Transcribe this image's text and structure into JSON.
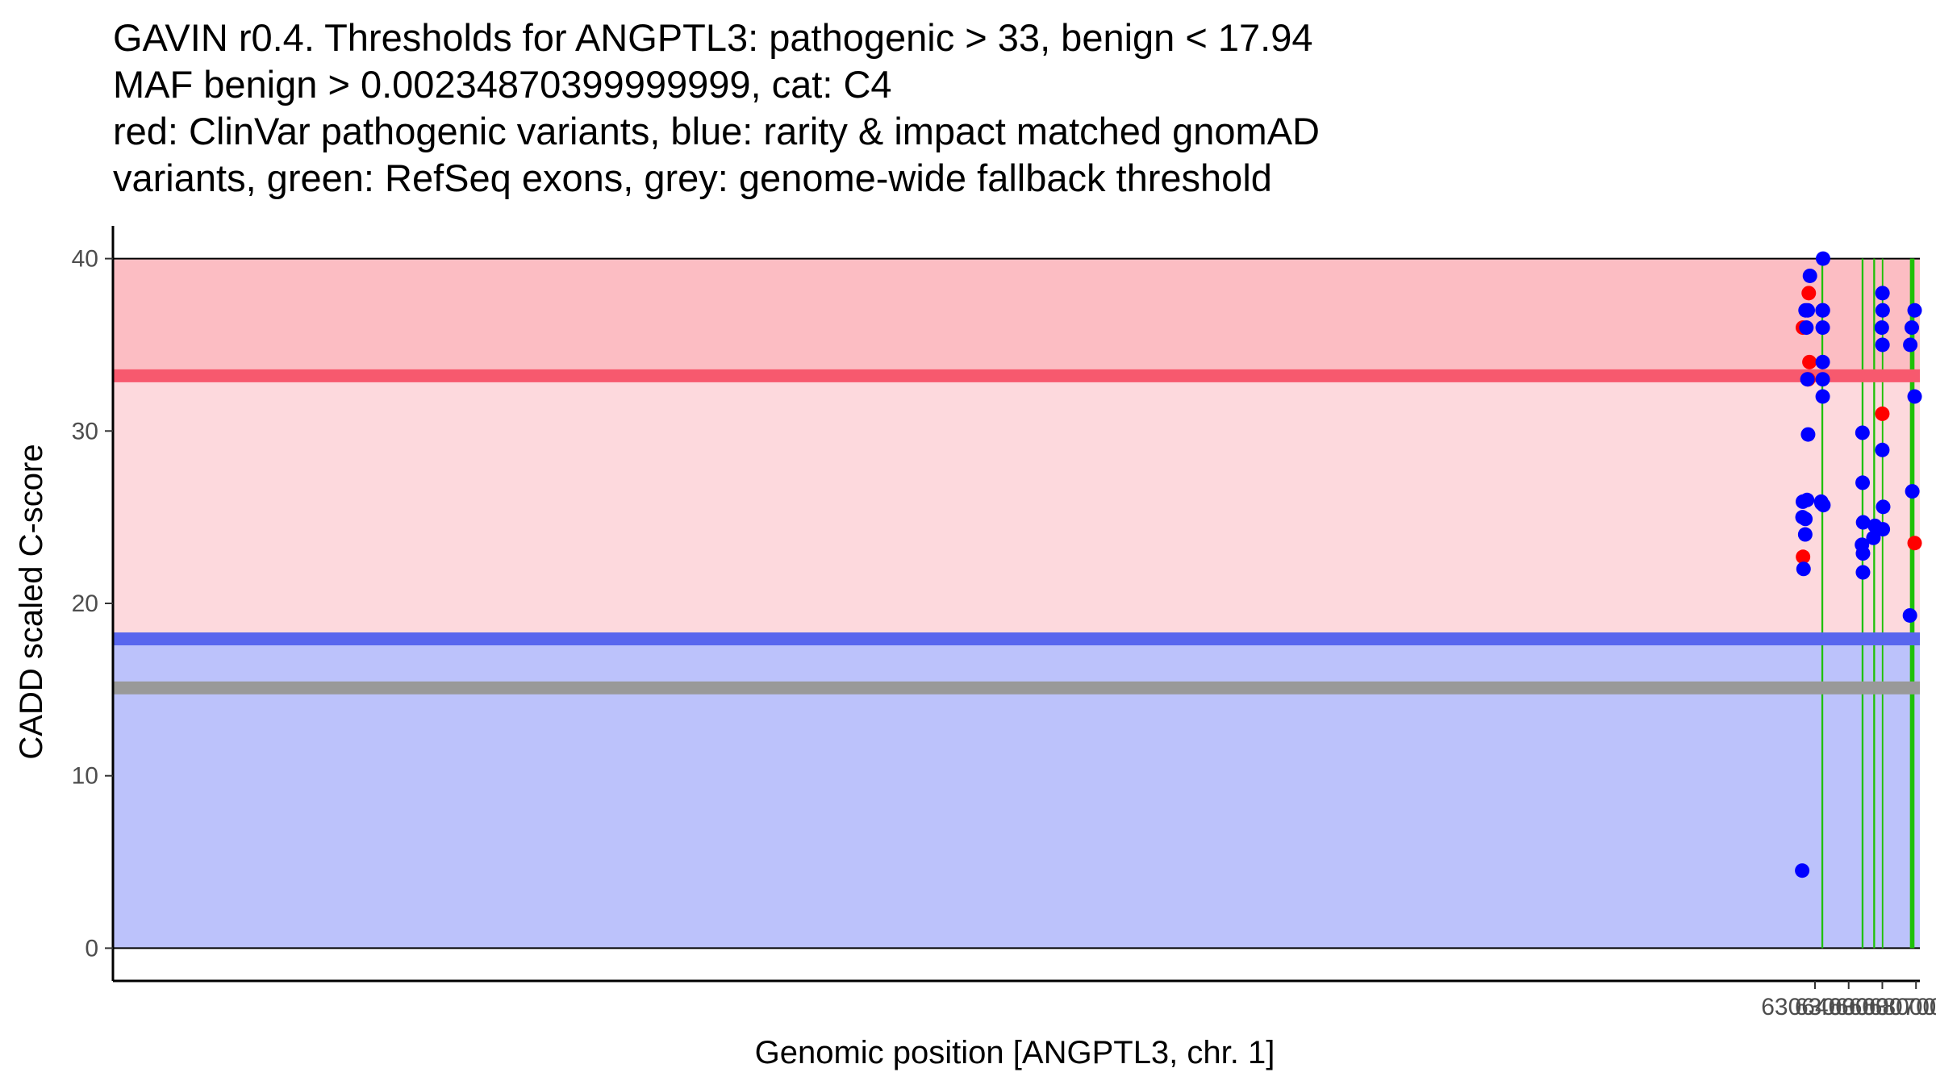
{
  "title_lines": [
    "GAVIN r0.4. Thresholds for ANGPTL3: pathogenic > 33, benign < 17.94",
    "MAF benign > 0.00234870399999999, cat: C4",
    "red: ClinVar pathogenic variants, blue: rarity & impact matched gnomAD",
    "variants, green: RefSeq exons, grey: genome-wide fallback threshold"
  ],
  "colors": {
    "pathogenic_zone": "#FCBDC3",
    "middle_zone": "#FDD9DD",
    "benign_zone": "#BCC2FB",
    "pathogenic_line": "#F7596E",
    "benign_line": "#5866EE",
    "fallback_line": "#999999",
    "exon": "#1FC106",
    "clinvar": "#FF0000",
    "gnomad": "#0000FF"
  },
  "chart_data": {
    "type": "scatter",
    "xlabel": "Genomic position [ANGPTL3, chr. 1]",
    "ylabel": "CADD scaled C-score",
    "xlim": [
      62962900,
      63070230
    ],
    "ylim": [
      -1.9,
      41.9
    ],
    "x_ticks": [
      63064000,
      63066000,
      63068000,
      63070000
    ],
    "x_tick_labels": [
      "63064000",
      "63066000",
      "63068000",
      "63070000"
    ],
    "y_ticks": [
      0,
      10,
      20,
      30,
      40
    ],
    "y_tick_labels": [
      "0",
      "10",
      "20",
      "30",
      "40"
    ],
    "zones": {
      "pathogenic": [
        33,
        40
      ],
      "middle": [
        17.94,
        33
      ],
      "benign": [
        0,
        17.94
      ]
    },
    "thresholds": {
      "pathogenic": 33.2,
      "benign": 17.94,
      "fallback": 15.1
    },
    "exons": [
      [
        63064380,
        63064490
      ],
      [
        63066770,
        63066880
      ],
      [
        63067460,
        63067570
      ],
      [
        63067970,
        63068060
      ],
      [
        63069640,
        63069910
      ]
    ],
    "series": [
      {
        "name": "ClinVar pathogenic variants",
        "color_key": "clinvar",
        "points": [
          [
            63063280,
            36
          ],
          [
            63063290,
            22.7
          ],
          [
            63063600,
            33
          ],
          [
            63063630,
            38
          ],
          [
            63063670,
            34
          ],
          [
            63068000,
            31
          ],
          [
            63069920,
            23.5
          ]
        ]
      },
      {
        "name": "rarity & impact matched gnomAD variants",
        "color_key": "gnomad",
        "points": [
          [
            63063240,
            4.5
          ],
          [
            63063260,
            25
          ],
          [
            63063280,
            25.9
          ],
          [
            63063320,
            22
          ],
          [
            63063420,
            24
          ],
          [
            63063430,
            24.9
          ],
          [
            63063440,
            37
          ],
          [
            63063490,
            36
          ],
          [
            63063530,
            26
          ],
          [
            63063550,
            33
          ],
          [
            63063570,
            37
          ],
          [
            63063590,
            29.8
          ],
          [
            63063700,
            39
          ],
          [
            63064370,
            25.9
          ],
          [
            63064390,
            25.8
          ],
          [
            63064450,
            37
          ],
          [
            63064460,
            36
          ],
          [
            63064460,
            34
          ],
          [
            63064460,
            33
          ],
          [
            63064460,
            32
          ],
          [
            63064470,
            37
          ],
          [
            63064480,
            40
          ],
          [
            63064500,
            25.7
          ],
          [
            63066790,
            23.4
          ],
          [
            63066820,
            29.9
          ],
          [
            63066830,
            27
          ],
          [
            63066850,
            22.9
          ],
          [
            63066850,
            21.8
          ],
          [
            63066860,
            24.7
          ],
          [
            63067470,
            23.8
          ],
          [
            63067560,
            24.5
          ],
          [
            63067970,
            36
          ],
          [
            63068010,
            38
          ],
          [
            63068010,
            35
          ],
          [
            63068020,
            37
          ],
          [
            63068000,
            28.9
          ],
          [
            63068030,
            24.3
          ],
          [
            63068050,
            25.6
          ],
          [
            63069640,
            19.3
          ],
          [
            63069660,
            35
          ],
          [
            63069750,
            36
          ],
          [
            63069780,
            26.5
          ],
          [
            63069920,
            37
          ],
          [
            63069920,
            32
          ]
        ]
      }
    ]
  }
}
